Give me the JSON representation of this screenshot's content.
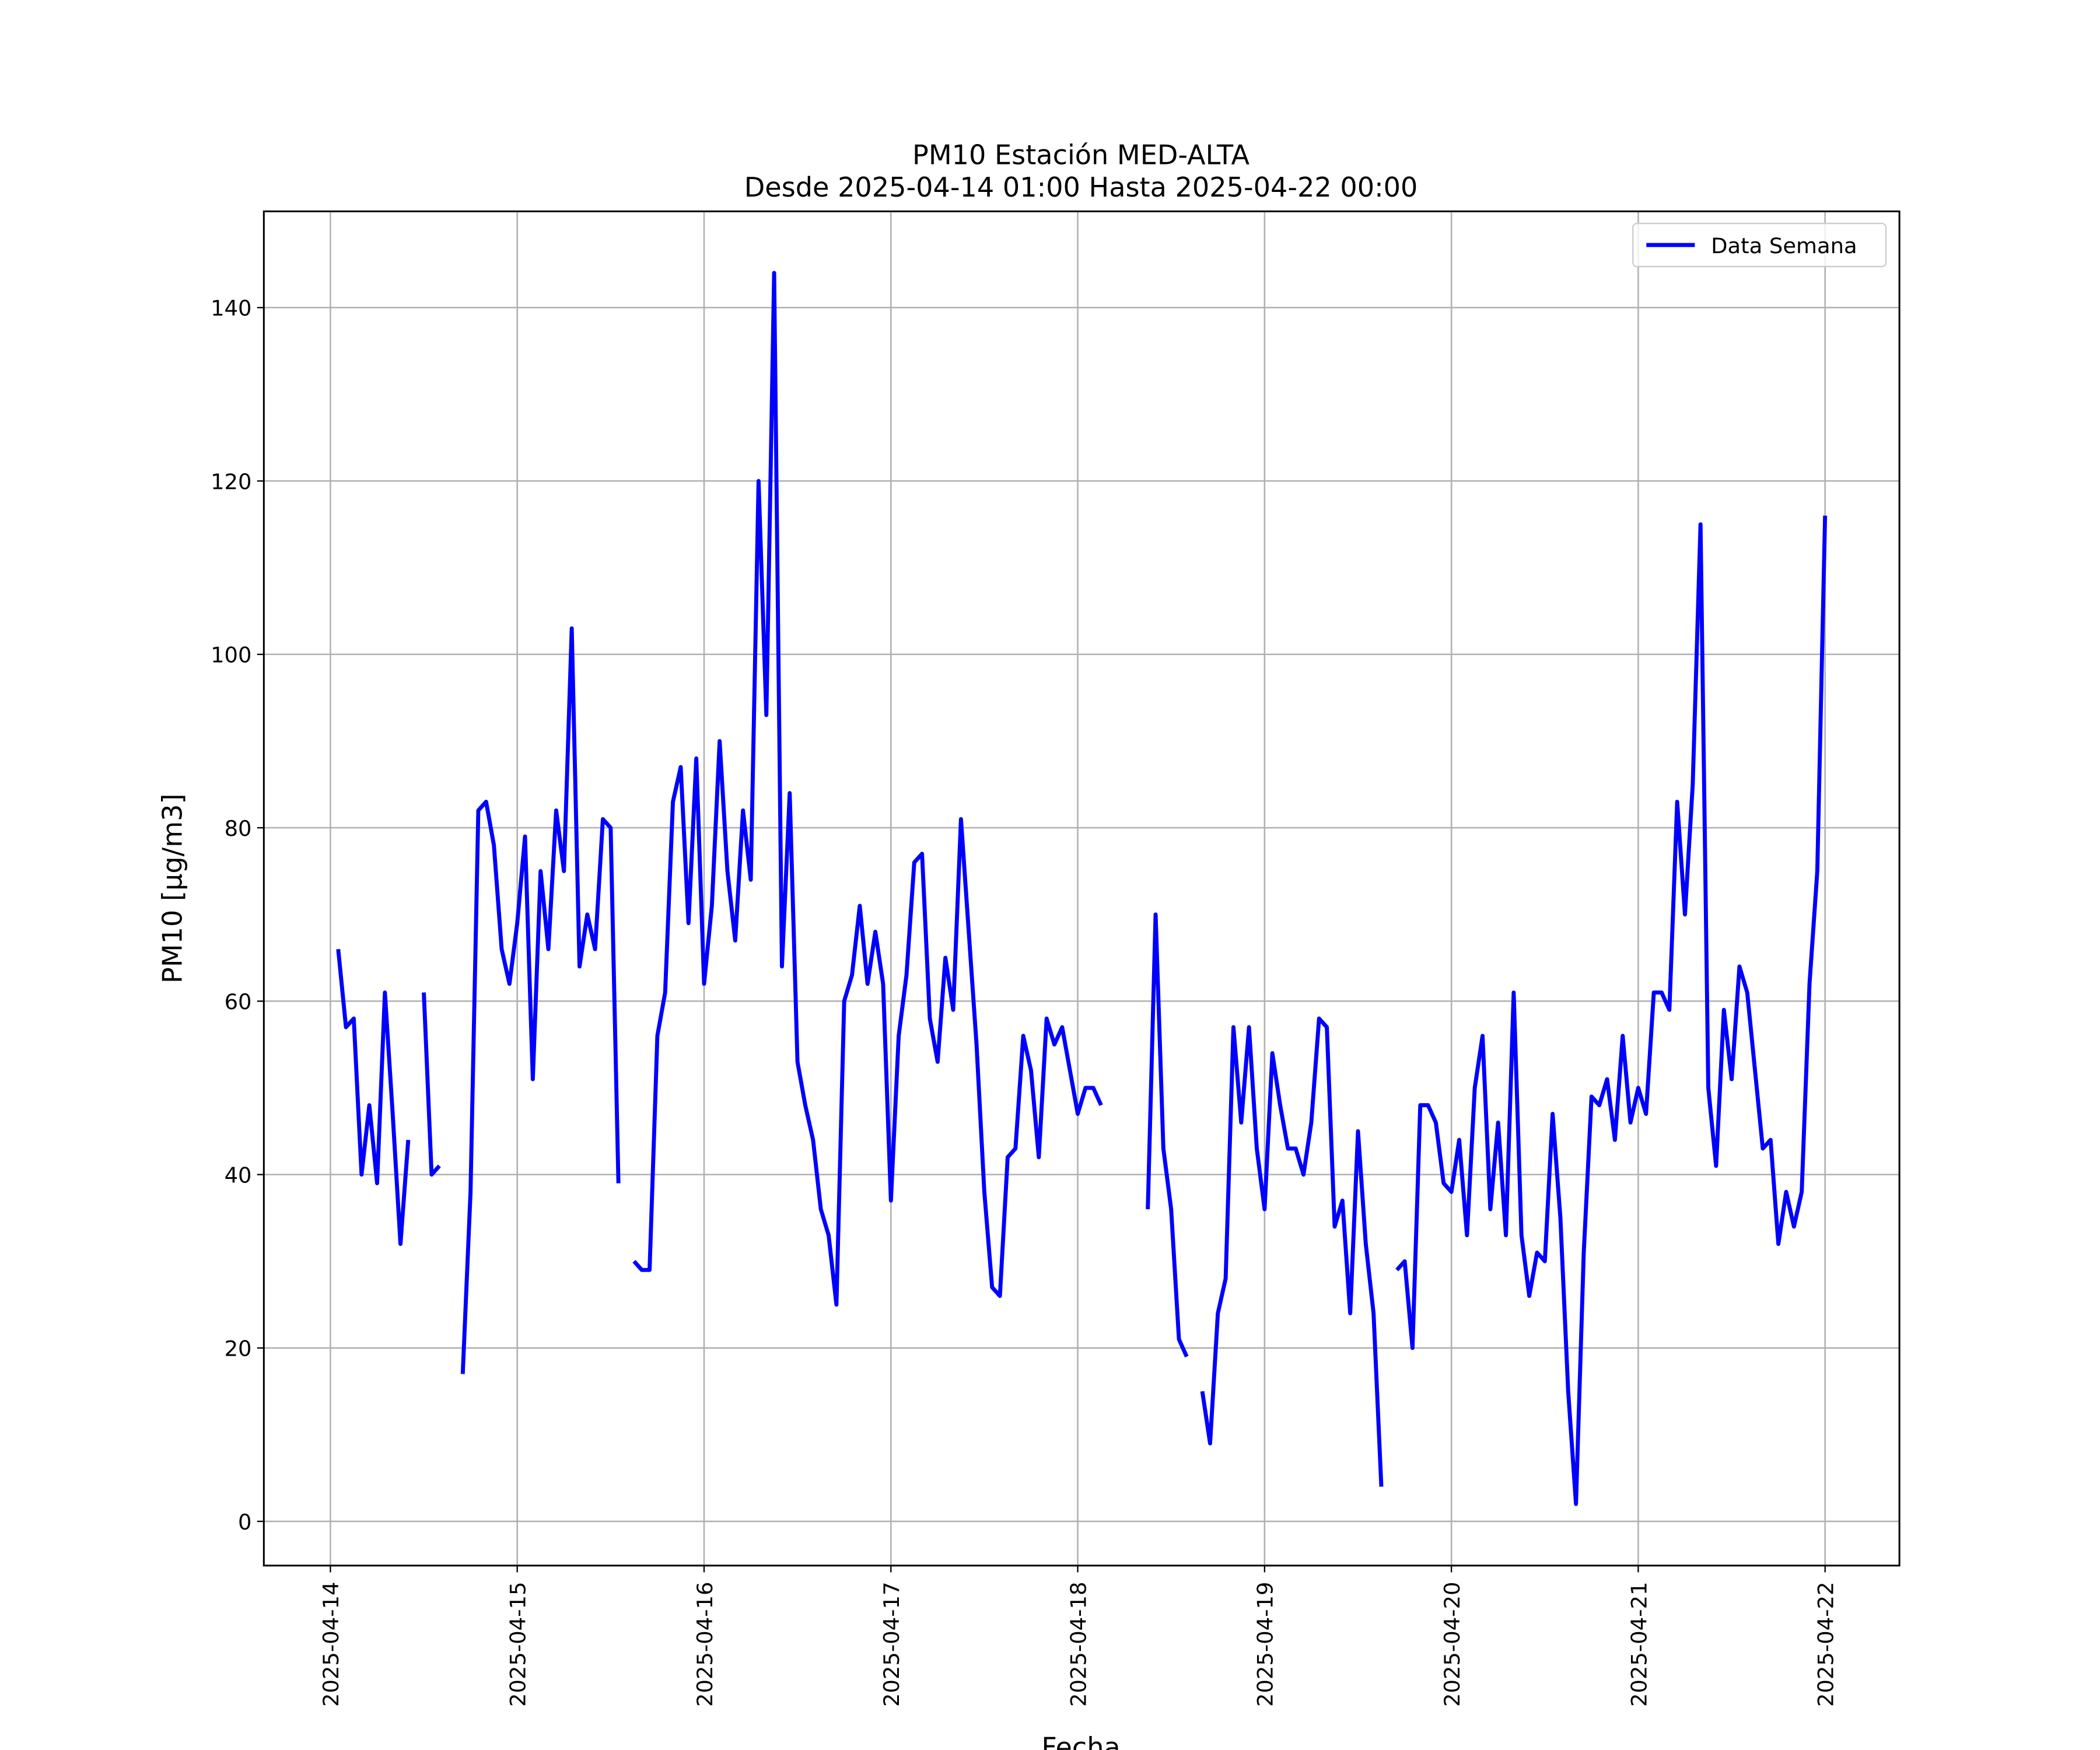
{
  "chart_data": {
    "type": "line",
    "title": "PM10 Estación MED-ALTA",
    "subtitle": "Desde 2025-04-14 01:00 Hasta 2025-04-22 00:00",
    "xlabel": "Fecha",
    "ylabel": "PM10 [μg/m3]",
    "legend": "upper right",
    "grid": true,
    "xlim": [
      "2025-04-13 15:27",
      "2025-04-22 09:33"
    ],
    "xticks": [
      "2025-04-14",
      "2025-04-15",
      "2025-04-16",
      "2025-04-17",
      "2025-04-18",
      "2025-04-19",
      "2025-04-20",
      "2025-04-21",
      "2025-04-22"
    ],
    "ylim": [
      -5.1,
      151.1
    ],
    "yticks": [
      0,
      20,
      40,
      60,
      80,
      100,
      120,
      140
    ],
    "x": [
      "2025-04-14 01:00",
      "2025-04-14 02:00",
      "2025-04-14 03:00",
      "2025-04-14 04:00",
      "2025-04-14 05:00",
      "2025-04-14 06:00",
      "2025-04-14 07:00",
      "2025-04-14 08:00",
      "2025-04-14 09:00",
      "2025-04-14 10:00",
      "2025-04-14 11:00",
      "2025-04-14 12:00",
      "2025-04-14 13:00",
      "2025-04-14 14:00",
      "2025-04-14 15:00",
      "2025-04-14 16:00",
      "2025-04-14 17:00",
      "2025-04-14 18:00",
      "2025-04-14 19:00",
      "2025-04-14 20:00",
      "2025-04-14 21:00",
      "2025-04-14 22:00",
      "2025-04-14 23:00",
      "2025-04-15 00:00",
      "2025-04-15 01:00",
      "2025-04-15 02:00",
      "2025-04-15 03:00",
      "2025-04-15 04:00",
      "2025-04-15 05:00",
      "2025-04-15 06:00",
      "2025-04-15 07:00",
      "2025-04-15 08:00",
      "2025-04-15 09:00",
      "2025-04-15 10:00",
      "2025-04-15 11:00",
      "2025-04-15 12:00",
      "2025-04-15 13:00",
      "2025-04-15 14:00",
      "2025-04-15 15:00",
      "2025-04-15 16:00",
      "2025-04-15 17:00",
      "2025-04-15 18:00",
      "2025-04-15 19:00",
      "2025-04-15 20:00",
      "2025-04-15 21:00",
      "2025-04-15 22:00",
      "2025-04-15 23:00",
      "2025-04-16 00:00",
      "2025-04-16 01:00",
      "2025-04-16 02:00",
      "2025-04-16 03:00",
      "2025-04-16 04:00",
      "2025-04-16 05:00",
      "2025-04-16 06:00",
      "2025-04-16 07:00",
      "2025-04-16 08:00",
      "2025-04-16 09:00",
      "2025-04-16 10:00",
      "2025-04-16 11:00",
      "2025-04-16 12:00",
      "2025-04-16 13:00",
      "2025-04-16 14:00",
      "2025-04-16 15:00",
      "2025-04-16 16:00",
      "2025-04-16 17:00",
      "2025-04-16 18:00",
      "2025-04-16 19:00",
      "2025-04-16 20:00",
      "2025-04-16 21:00",
      "2025-04-16 22:00",
      "2025-04-16 23:00",
      "2025-04-17 00:00",
      "2025-04-17 01:00",
      "2025-04-17 02:00",
      "2025-04-17 03:00",
      "2025-04-17 04:00",
      "2025-04-17 05:00",
      "2025-04-17 06:00",
      "2025-04-17 07:00",
      "2025-04-17 08:00",
      "2025-04-17 09:00",
      "2025-04-17 10:00",
      "2025-04-17 11:00",
      "2025-04-17 12:00",
      "2025-04-17 13:00",
      "2025-04-17 14:00",
      "2025-04-17 15:00",
      "2025-04-17 16:00",
      "2025-04-17 17:00",
      "2025-04-17 18:00",
      "2025-04-17 19:00",
      "2025-04-17 20:00",
      "2025-04-17 21:00",
      "2025-04-17 22:00",
      "2025-04-17 23:00",
      "2025-04-18 00:00",
      "2025-04-18 01:00",
      "2025-04-18 02:00",
      "2025-04-18 03:00",
      "2025-04-18 04:00",
      "2025-04-18 05:00",
      "2025-04-18 06:00",
      "2025-04-18 07:00",
      "2025-04-18 08:00",
      "2025-04-18 09:00",
      "2025-04-18 10:00",
      "2025-04-18 11:00",
      "2025-04-18 12:00",
      "2025-04-18 13:00",
      "2025-04-18 14:00",
      "2025-04-18 15:00",
      "2025-04-18 16:00",
      "2025-04-18 17:00",
      "2025-04-18 18:00",
      "2025-04-18 19:00",
      "2025-04-18 20:00",
      "2025-04-18 21:00",
      "2025-04-18 22:00",
      "2025-04-18 23:00",
      "2025-04-19 00:00",
      "2025-04-19 01:00",
      "2025-04-19 02:00",
      "2025-04-19 03:00",
      "2025-04-19 04:00",
      "2025-04-19 05:00",
      "2025-04-19 06:00",
      "2025-04-19 07:00",
      "2025-04-19 08:00",
      "2025-04-19 09:00",
      "2025-04-19 10:00",
      "2025-04-19 11:00",
      "2025-04-19 12:00",
      "2025-04-19 13:00",
      "2025-04-19 14:00",
      "2025-04-19 15:00",
      "2025-04-19 16:00",
      "2025-04-19 17:00",
      "2025-04-19 18:00",
      "2025-04-19 19:00",
      "2025-04-19 20:00",
      "2025-04-19 21:00",
      "2025-04-19 22:00",
      "2025-04-19 23:00",
      "2025-04-20 00:00",
      "2025-04-20 01:00",
      "2025-04-20 02:00",
      "2025-04-20 03:00",
      "2025-04-20 04:00",
      "2025-04-20 05:00",
      "2025-04-20 06:00",
      "2025-04-20 07:00",
      "2025-04-20 08:00",
      "2025-04-20 09:00",
      "2025-04-20 10:00",
      "2025-04-20 11:00",
      "2025-04-20 12:00",
      "2025-04-20 13:00",
      "2025-04-20 14:00",
      "2025-04-20 15:00",
      "2025-04-20 16:00",
      "2025-04-20 17:00",
      "2025-04-20 18:00",
      "2025-04-20 19:00",
      "2025-04-20 20:00",
      "2025-04-20 21:00",
      "2025-04-20 22:00",
      "2025-04-20 23:00",
      "2025-04-21 00:00",
      "2025-04-21 01:00",
      "2025-04-21 02:00",
      "2025-04-21 03:00",
      "2025-04-21 04:00",
      "2025-04-21 05:00",
      "2025-04-21 06:00",
      "2025-04-21 07:00",
      "2025-04-21 08:00",
      "2025-04-21 09:00",
      "2025-04-21 10:00",
      "2025-04-21 11:00",
      "2025-04-21 12:00",
      "2025-04-21 13:00",
      "2025-04-21 14:00",
      "2025-04-21 15:00",
      "2025-04-21 16:00",
      "2025-04-21 17:00",
      "2025-04-21 18:00",
      "2025-04-21 19:00",
      "2025-04-21 20:00",
      "2025-04-21 21:00",
      "2025-04-21 22:00",
      "2025-04-21 23:00",
      "2025-04-22 00:00"
    ],
    "series": [
      {
        "name": "Data Semana",
        "color": "#0000ff",
        "values": [
          66,
          57,
          58,
          40,
          48,
          39,
          61,
          47,
          32,
          44,
          null,
          61,
          40,
          41,
          null,
          null,
          17,
          38,
          82,
          83,
          78,
          66,
          62,
          69,
          79,
          51,
          75,
          66,
          82,
          75,
          103,
          64,
          70,
          66,
          81,
          80,
          39,
          null,
          30,
          29,
          29,
          56,
          61,
          83,
          87,
          69,
          88,
          62,
          71,
          90,
          75,
          67,
          82,
          74,
          120,
          93,
          144,
          64,
          84,
          53,
          48,
          44,
          36,
          33,
          25,
          60,
          63,
          71,
          62,
          68,
          62,
          37,
          56,
          63,
          76,
          77,
          58,
          53,
          65,
          59,
          81,
          68,
          55,
          38,
          27,
          26,
          42,
          43,
          56,
          52,
          42,
          58,
          55,
          57,
          52,
          47,
          50,
          50,
          48,
          null,
          null,
          null,
          null,
          null,
          36,
          70,
          43,
          36,
          21,
          19,
          null,
          15,
          9,
          24,
          28,
          57,
          46,
          57,
          43,
          36,
          54,
          48,
          43,
          43,
          40,
          46,
          58,
          57,
          34,
          37,
          24,
          45,
          32,
          24,
          4,
          null,
          29,
          30,
          20,
          48,
          48,
          46,
          39,
          38,
          44,
          33,
          50,
          56,
          36,
          46,
          33,
          61,
          33,
          26,
          31,
          30,
          47,
          35,
          15,
          2,
          31,
          49,
          48,
          51,
          44,
          56,
          46,
          50,
          47,
          61,
          61,
          59,
          83,
          70,
          85,
          115,
          50,
          41,
          59,
          51,
          64,
          61,
          52,
          43,
          44,
          32,
          38,
          34,
          38,
          62,
          75,
          116
        ]
      }
    ]
  }
}
